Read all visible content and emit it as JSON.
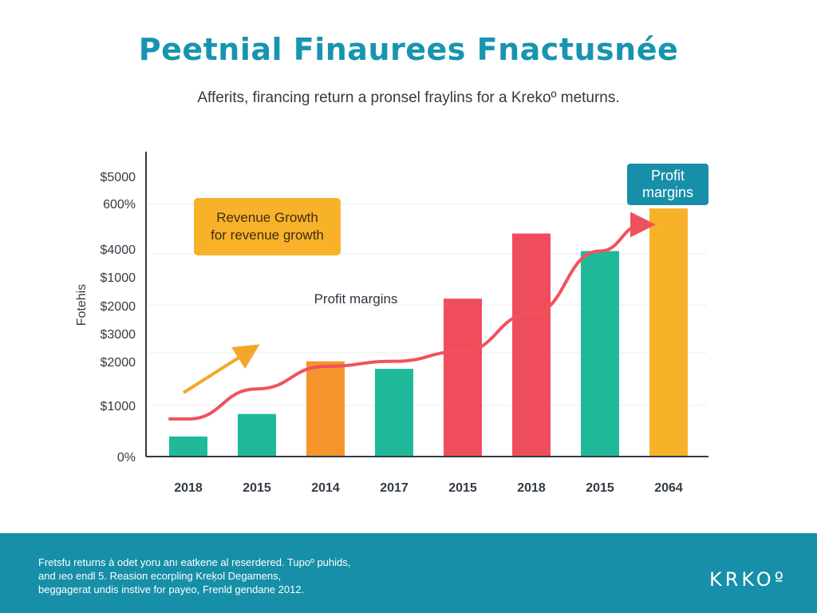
{
  "title": "Peetnial Finaurees Fnactusnée",
  "subtitle": "Afferits, firancing return a pronsel fraylins for a Krekoº meturns.",
  "colors": {
    "title": "#1795b0",
    "teal": "#1fb99a",
    "orange": "#f6942d",
    "red": "#f04d5c",
    "yellow": "#f8b22a",
    "line": "#f0525d",
    "footer": "#178fa8",
    "tag": "#178fa8"
  },
  "chart_data": {
    "type": "bar",
    "title": "Peetnial Finaurees Fnactusnée",
    "ylabel": "Fotehis",
    "categories": [
      "2018",
      "2015",
      "2014",
      "2017",
      "2015",
      "2018",
      "2015",
      "2064"
    ],
    "y_tick_labels": [
      "$5000",
      "600%",
      "$4000",
      "$1000",
      "$2000",
      "$3000",
      "$2000",
      "$1000",
      "0%"
    ],
    "ylim": [
      0,
      100
    ],
    "grid": true,
    "series": [
      {
        "kind": "bar",
        "values": [
          8,
          17,
          38,
          35,
          63,
          89,
          82,
          99
        ],
        "colors": [
          "teal",
          "teal",
          "orange",
          "teal",
          "red",
          "red",
          "teal",
          "yellow"
        ]
      },
      {
        "kind": "line",
        "values": [
          15,
          27,
          36,
          38,
          42,
          57,
          82,
          90
        ]
      }
    ],
    "annotations": {
      "box": [
        "Revenue Growth",
        "for revenue growth"
      ],
      "label": "Profit margins",
      "tag": [
        "Profit",
        "margins"
      ]
    }
  },
  "footer": {
    "lines": [
      "Fretsfu returns à odet yoru anı eatkene al reserdered. Tupoº puhids,",
      "and ıeo endl 5. Reasion ecorpling Kreķol Degamens,",
      "beggagerat undis instive for payeo, Frenld gendane 2012."
    ],
    "brand": "KRKOº"
  }
}
